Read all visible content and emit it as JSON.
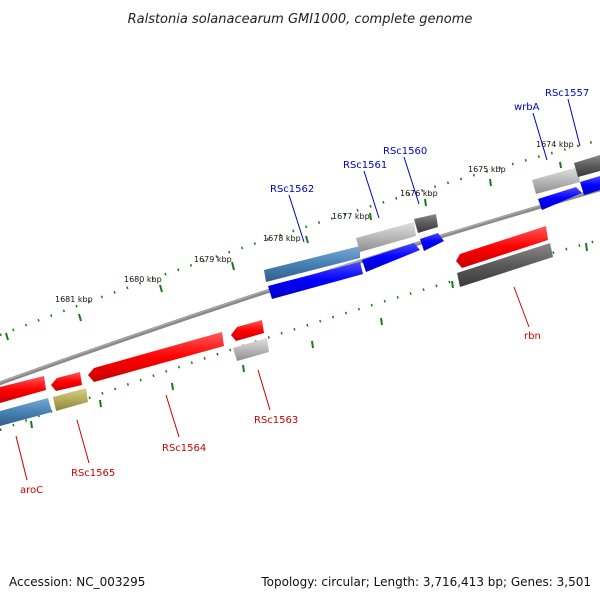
{
  "header": {
    "title": "Ralstonia solanacearum GMI1000, complete genome"
  },
  "footer": {
    "accession": "Accession: NC_003295",
    "stats": "Topology: circular; Length: 3,716,413 bp; Genes: 3,501"
  },
  "ticks": [
    {
      "label": "1674 kbp"
    },
    {
      "label": "1675 kbp"
    },
    {
      "label": "1676 kbp"
    },
    {
      "label": "1677 kbp"
    },
    {
      "label": "1678 kbp"
    },
    {
      "label": "1679 kbp"
    },
    {
      "label": "1680 kbp"
    },
    {
      "label": "1681 kbp"
    }
  ],
  "gene_labels": [
    {
      "name": "RSc1557",
      "color": "#0000cc"
    },
    {
      "name": "wrbA",
      "color": "#0000cc"
    },
    {
      "name": "RSc1560",
      "color": "#0000cc"
    },
    {
      "name": "RSc1561",
      "color": "#0000cc"
    },
    {
      "name": "RSc1562",
      "color": "#0000cc"
    },
    {
      "name": "rbn",
      "color": "#cc0000"
    },
    {
      "name": "RSc1563",
      "color": "#cc0000"
    },
    {
      "name": "RSc1564",
      "color": "#cc0000"
    },
    {
      "name": "RSc1565",
      "color": "#cc0000"
    },
    {
      "name": "aroC",
      "color": "#cc0000"
    }
  ],
  "colors": {
    "forward_strand": "#0000ff",
    "reverse_strand": "#ff0000",
    "tick_marks": "#1a7a1a",
    "backbone": "#7a7a7a",
    "cds_steelblue": "#4682b4",
    "cds_lightgray": "#b8b8b8",
    "cds_darkgray": "#5a5a5a",
    "cds_khaki": "#b5ad5a"
  }
}
